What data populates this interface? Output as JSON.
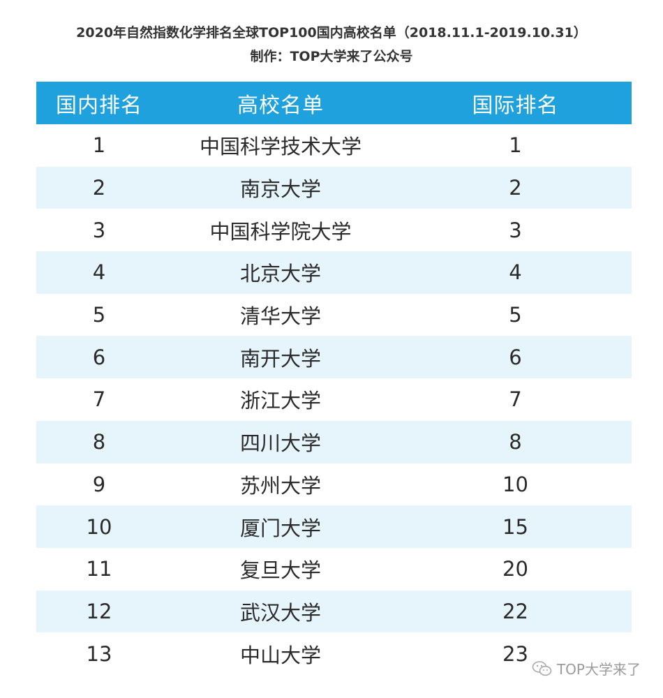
{
  "header": {
    "title": "2020年自然指数化学排名全球TOP100国内高校名单（2018.11.1-2019.10.31）",
    "subtitle": "制作：TOP大学来了公众号"
  },
  "table": {
    "columns": [
      "国内排名",
      "高校名单",
      "国际排名"
    ],
    "rows": [
      {
        "domestic": "1",
        "name": "中国科学技术大学",
        "global": "1"
      },
      {
        "domestic": "2",
        "name": "南京大学",
        "global": "2"
      },
      {
        "domestic": "3",
        "name": "中国科学院大学",
        "global": "3"
      },
      {
        "domestic": "4",
        "name": "北京大学",
        "global": "4"
      },
      {
        "domestic": "5",
        "name": "清华大学",
        "global": "5"
      },
      {
        "domestic": "6",
        "name": "南开大学",
        "global": "6"
      },
      {
        "domestic": "7",
        "name": "浙江大学",
        "global": "7"
      },
      {
        "domestic": "8",
        "name": "四川大学",
        "global": "8"
      },
      {
        "domestic": "9",
        "name": "苏州大学",
        "global": "10"
      },
      {
        "domestic": "10",
        "name": "厦门大学",
        "global": "15"
      },
      {
        "domestic": "11",
        "name": "复旦大学",
        "global": "20"
      },
      {
        "domestic": "12",
        "name": "武汉大学",
        "global": "22"
      },
      {
        "domestic": "13",
        "name": "中山大学",
        "global": "23"
      }
    ]
  },
  "watermark": {
    "icon": "wechat-icon",
    "text": "TOP大学来了"
  },
  "colors": {
    "header_bg": "#1ea1dc",
    "alt_row_bg": "#e6f4fb"
  }
}
